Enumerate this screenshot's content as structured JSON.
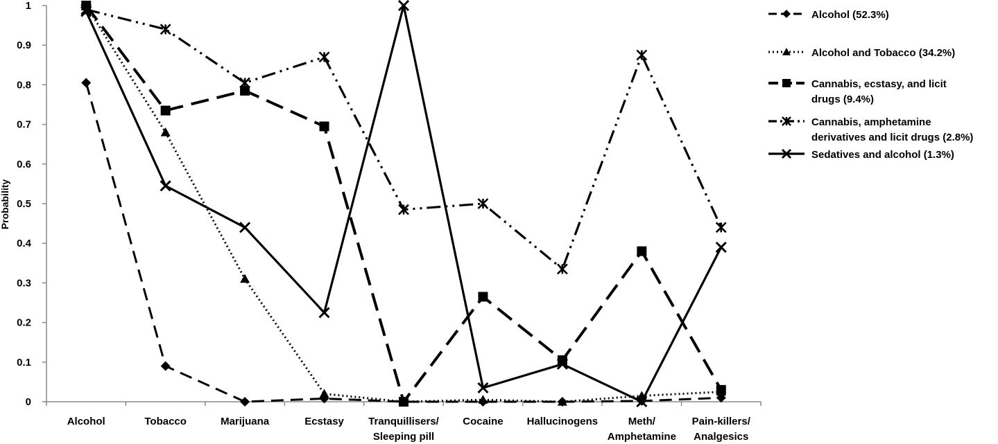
{
  "chart_data": {
    "type": "line",
    "title": "",
    "xlabel": "",
    "ylabel": "Probability",
    "ylim": [
      0,
      1
    ],
    "yticks": [
      "0",
      "0.1",
      "0.2",
      "0.3",
      "0.4",
      "0.5",
      "0.6",
      "0.7",
      "0.8",
      "0.9",
      "1"
    ],
    "categories": [
      [
        "Alcohol"
      ],
      [
        "Tobacco"
      ],
      [
        "Marijuana"
      ],
      [
        "Ecstasy"
      ],
      [
        "Tranquillisers/",
        "Sleeping pill"
      ],
      [
        "Cocaine"
      ],
      [
        "Hallucinogens"
      ],
      [
        "Meth/",
        "Amphetamine"
      ],
      [
        "Pain-killers/",
        "Analgesics"
      ]
    ],
    "grid": false,
    "legend_position": "right",
    "series": [
      {
        "name": "Alcohol (52.3%)",
        "marker": "diamond",
        "dash": "long-dash",
        "values": [
          0.805,
          0.09,
          0.0,
          0.008,
          0.0,
          0.0,
          0.0,
          0.002,
          0.01
        ]
      },
      {
        "name": "Alcohol and Tobacco (34.2%)",
        "marker": "triangle",
        "dash": "dotted",
        "values": [
          1.0,
          0.68,
          0.31,
          0.02,
          0.0,
          0.005,
          0.0,
          0.015,
          0.025
        ]
      },
      {
        "name": "Cannabis, ecstasy, and licit drugs (9.4%)",
        "legend_lines": [
          "Cannabis, ecstasy, and licit",
          "drugs (9.4%)"
        ],
        "marker": "square",
        "dash": "long-dash-heavy",
        "values": [
          1.0,
          0.735,
          0.785,
          0.695,
          0.0,
          0.265,
          0.105,
          0.38,
          0.03
        ]
      },
      {
        "name": "Cannabis, amphetamine derivatives and licit drugs (2.8%)",
        "legend_lines": [
          "Cannabis, amphetamine",
          "derivatives and licit drugs (2.8%)"
        ],
        "marker": "asterisk",
        "dash": "dash-dot-dot",
        "values": [
          0.99,
          0.94,
          0.805,
          0.87,
          0.485,
          0.5,
          0.335,
          0.875,
          0.44
        ]
      },
      {
        "name": "Sedatives and alcohol (1.3%)",
        "marker": "x",
        "dash": "solid",
        "values": [
          0.985,
          0.545,
          0.44,
          0.225,
          1.0,
          0.035,
          0.095,
          0.0,
          0.39
        ]
      }
    ]
  }
}
